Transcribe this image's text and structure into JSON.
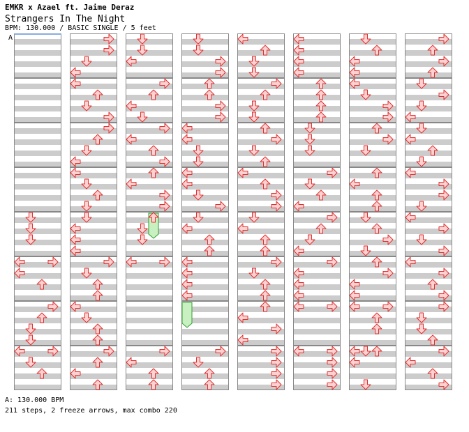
{
  "header": {
    "artist": "EMKR x Azael ft. Jaime Deraz",
    "title": "Strangers In The Night",
    "info": "BPM: 130.000 / BASIC SINGLE / 5 feet"
  },
  "footer": {
    "bpm_line": "A: 130.000 BPM",
    "stats_line": "211 steps, 2 freeze arrows, max combo 220"
  },
  "chart_data": {
    "type": "step-chart",
    "bpm_marker": "A",
    "bpm": 130.0,
    "difficulty": "BASIC SINGLE",
    "feet": 5,
    "measures_per_column": 8,
    "rows_per_measure": 8,
    "colors": {
      "arrow_fill": "#ffd2d2",
      "arrow_stroke": "#e03030",
      "freeze_fill": "#c8f0c0",
      "freeze_stroke": "#30a030",
      "stripe": "#cccccc",
      "border": "#888888"
    },
    "columns": [
      [
        [],
        [],
        [],
        [],
        [
          [
            "D",
            0
          ],
          [
            "D",
            2
          ],
          [
            "D",
            4
          ]
        ],
        [
          [
            "L",
            0
          ],
          [
            "R",
            0
          ],
          [
            "L",
            2
          ],
          [
            "U",
            4
          ]
        ],
        [
          [
            "R",
            0
          ],
          [
            "U",
            2
          ],
          [
            "D",
            4
          ],
          [
            "D",
            6
          ]
        ],
        [
          [
            "L",
            0
          ],
          [
            "R",
            0
          ],
          [
            "D",
            2
          ],
          [
            "U",
            4
          ]
        ]
      ],
      [
        [
          [
            "R",
            0
          ],
          [
            "R",
            2
          ],
          [
            "D",
            4
          ],
          [
            "L",
            6
          ]
        ],
        [
          [
            "L",
            0
          ],
          [
            "U",
            2
          ],
          [
            "D",
            4
          ],
          [
            "R",
            6
          ]
        ],
        [
          [
            "R",
            0
          ],
          [
            "U",
            2
          ],
          [
            "D",
            4
          ],
          [
            "L",
            6
          ]
        ],
        [
          [
            "L",
            0
          ],
          [
            "D",
            2
          ],
          [
            "U",
            4
          ],
          [
            "D",
            6
          ]
        ],
        [
          [
            "D",
            0
          ],
          [
            "L",
            2
          ],
          [
            "L",
            4
          ],
          [
            "L",
            6
          ]
        ],
        [
          [
            "R",
            0
          ],
          [
            "D",
            2
          ],
          [
            "U",
            4
          ],
          [
            "U",
            6
          ]
        ],
        [
          [
            "L",
            0
          ],
          [
            "D",
            2
          ],
          [
            "U",
            4
          ],
          [
            "U",
            6
          ]
        ],
        [
          [
            "R",
            0
          ],
          [
            "U",
            2
          ],
          [
            "L",
            4
          ],
          [
            "U",
            6
          ]
        ]
      ],
      [
        [
          [
            "D",
            0
          ],
          [
            "D",
            2
          ],
          [
            "L",
            4
          ]
        ],
        [
          [
            "R",
            0
          ],
          [
            "U",
            2
          ],
          [
            "L",
            4
          ],
          [
            "D",
            6
          ]
        ],
        [
          [
            "R",
            0
          ],
          [
            "L",
            2
          ],
          [
            "U",
            4
          ],
          [
            "R",
            6
          ]
        ],
        [
          [
            "U",
            0
          ],
          [
            "L",
            2
          ],
          [
            "R",
            4
          ],
          [
            "R",
            6
          ]
        ],
        [
          [
            "U",
            0
          ],
          [
            "D",
            2
          ],
          [
            "D",
            4
          ]
        ],
        [
          [
            "L",
            0
          ],
          [
            "R",
            0
          ]
        ],
        [],
        [
          [
            "R",
            0
          ],
          [
            "L",
            2
          ],
          [
            "U",
            4
          ],
          [
            "U",
            6
          ]
        ]
      ],
      [
        [
          [
            "D",
            0
          ],
          [
            "D",
            2
          ],
          [
            "R",
            4
          ],
          [
            "R",
            6
          ]
        ],
        [
          [
            "U",
            0
          ],
          [
            "U",
            2
          ],
          [
            "R",
            4
          ],
          [
            "R",
            6
          ]
        ],
        [
          [
            "L",
            0
          ],
          [
            "L",
            2
          ],
          [
            "D",
            4
          ],
          [
            "D",
            6
          ]
        ],
        [
          [
            "L",
            0
          ],
          [
            "L",
            2
          ],
          [
            "D",
            4
          ],
          [
            "R",
            6
          ]
        ],
        [
          [
            "D",
            0
          ],
          [
            "L",
            2
          ],
          [
            "U",
            4
          ],
          [
            "U",
            6
          ]
        ],
        [
          [
            "L",
            0
          ],
          [
            "L",
            2
          ],
          [
            "L",
            4
          ],
          [
            "L",
            6
          ]
        ],
        [],
        [
          [
            "R",
            0
          ],
          [
            "D",
            2
          ],
          [
            "U",
            4
          ],
          [
            "U",
            6
          ]
        ]
      ],
      [
        [
          [
            "L",
            0
          ],
          [
            "U",
            2
          ],
          [
            "D",
            4
          ],
          [
            "D",
            6
          ]
        ],
        [
          [
            "R",
            0
          ],
          [
            "U",
            2
          ],
          [
            "D",
            4
          ],
          [
            "D",
            6
          ]
        ],
        [
          [
            "U",
            0
          ],
          [
            "R",
            2
          ],
          [
            "D",
            4
          ],
          [
            "U",
            6
          ]
        ],
        [
          [
            "L",
            0
          ],
          [
            "U",
            2
          ],
          [
            "R",
            4
          ],
          [
            "R",
            6
          ]
        ],
        [
          [
            "D",
            0
          ],
          [
            "L",
            2
          ],
          [
            "U",
            4
          ],
          [
            "U",
            6
          ]
        ],
        [
          [
            "R",
            0
          ],
          [
            "D",
            2
          ],
          [
            "U",
            4
          ],
          [
            "U",
            6
          ]
        ],
        [
          [
            "U",
            0
          ],
          [
            "L",
            2
          ],
          [
            "R",
            4
          ],
          [
            "L",
            6
          ]
        ],
        [
          [
            "R",
            0
          ],
          [
            "R",
            2
          ],
          [
            "R",
            4
          ],
          [
            "R",
            6
          ]
        ]
      ],
      [
        [
          [
            "L",
            0
          ],
          [
            "L",
            2
          ],
          [
            "L",
            4
          ],
          [
            "L",
            6
          ]
        ],
        [
          [
            "U",
            0
          ],
          [
            "U",
            2
          ],
          [
            "U",
            4
          ],
          [
            "U",
            6
          ]
        ],
        [
          [
            "D",
            0
          ],
          [
            "D",
            2
          ],
          [
            "D",
            4
          ]
        ],
        [
          [
            "R",
            0
          ],
          [
            "D",
            2
          ],
          [
            "U",
            4
          ],
          [
            "L",
            6
          ]
        ],
        [
          [
            "R",
            0
          ],
          [
            "U",
            2
          ],
          [
            "D",
            4
          ],
          [
            "L",
            6
          ]
        ],
        [
          [
            "R",
            0
          ],
          [
            "L",
            2
          ],
          [
            "L",
            4
          ],
          [
            "L",
            6
          ]
        ],
        [
          [
            "L",
            0
          ],
          [
            "R",
            0
          ]
        ],
        [
          [
            "L",
            0
          ],
          [
            "R",
            0
          ],
          [
            "R",
            2
          ],
          [
            "R",
            4
          ],
          [
            "R",
            6
          ]
        ]
      ],
      [
        [
          [
            "D",
            0
          ],
          [
            "U",
            2
          ],
          [
            "L",
            4
          ],
          [
            "L",
            6
          ]
        ],
        [
          [
            "L",
            0
          ],
          [
            "D",
            2
          ],
          [
            "R",
            4
          ],
          [
            "R",
            6
          ]
        ],
        [
          [
            "U",
            0
          ],
          [
            "R",
            2
          ],
          [
            "D",
            4
          ]
        ],
        [
          [
            "U",
            0
          ],
          [
            "L",
            2
          ],
          [
            "U",
            4
          ],
          [
            "U",
            6
          ]
        ],
        [
          [
            "D",
            0
          ],
          [
            "U",
            2
          ],
          [
            "R",
            4
          ],
          [
            "D",
            6
          ]
        ],
        [
          [
            "U",
            0
          ],
          [
            "R",
            2
          ],
          [
            "L",
            4
          ],
          [
            "L",
            6
          ]
        ],
        [
          [
            "L",
            0
          ],
          [
            "R",
            0
          ],
          [
            "U",
            2
          ],
          [
            "U",
            4
          ]
        ],
        [
          [
            "L",
            0
          ],
          [
            "D",
            0
          ],
          [
            "U",
            0
          ],
          [
            "L",
            2
          ],
          [
            "D",
            6
          ]
        ]
      ],
      [
        [
          [
            "R",
            0
          ],
          [
            "U",
            2
          ],
          [
            "R",
            4
          ],
          [
            "U",
            6
          ]
        ],
        [
          [
            "D",
            0
          ],
          [
            "R",
            2
          ],
          [
            "D",
            4
          ],
          [
            "L",
            6
          ]
        ],
        [
          [
            "D",
            0
          ],
          [
            "L",
            2
          ],
          [
            "U",
            4
          ],
          [
            "D",
            6
          ]
        ],
        [
          [
            "L",
            0
          ],
          [
            "R",
            2
          ],
          [
            "R",
            4
          ],
          [
            "D",
            6
          ]
        ],
        [
          [
            "L",
            0
          ],
          [
            "R",
            2
          ],
          [
            "D",
            4
          ],
          [
            "R",
            6
          ]
        ],
        [
          [
            "L",
            0
          ],
          [
            "R",
            2
          ],
          [
            "U",
            4
          ],
          [
            "R",
            6
          ]
        ],
        [
          [
            "R",
            0
          ],
          [
            "D",
            2
          ],
          [
            "D",
            4
          ],
          [
            "U",
            6
          ]
        ],
        [
          [
            "R",
            0
          ],
          [
            "L",
            2
          ],
          [
            "U",
            4
          ],
          [
            "R",
            6
          ]
        ]
      ]
    ],
    "freezes": [
      {
        "column": 2,
        "measure": 4,
        "lane": "U",
        "start_row": 0,
        "end_row": 2.75
      },
      {
        "column": 3,
        "measure": 6,
        "lane": "L",
        "start_row": 0,
        "end_row": 2.75
      }
    ]
  }
}
